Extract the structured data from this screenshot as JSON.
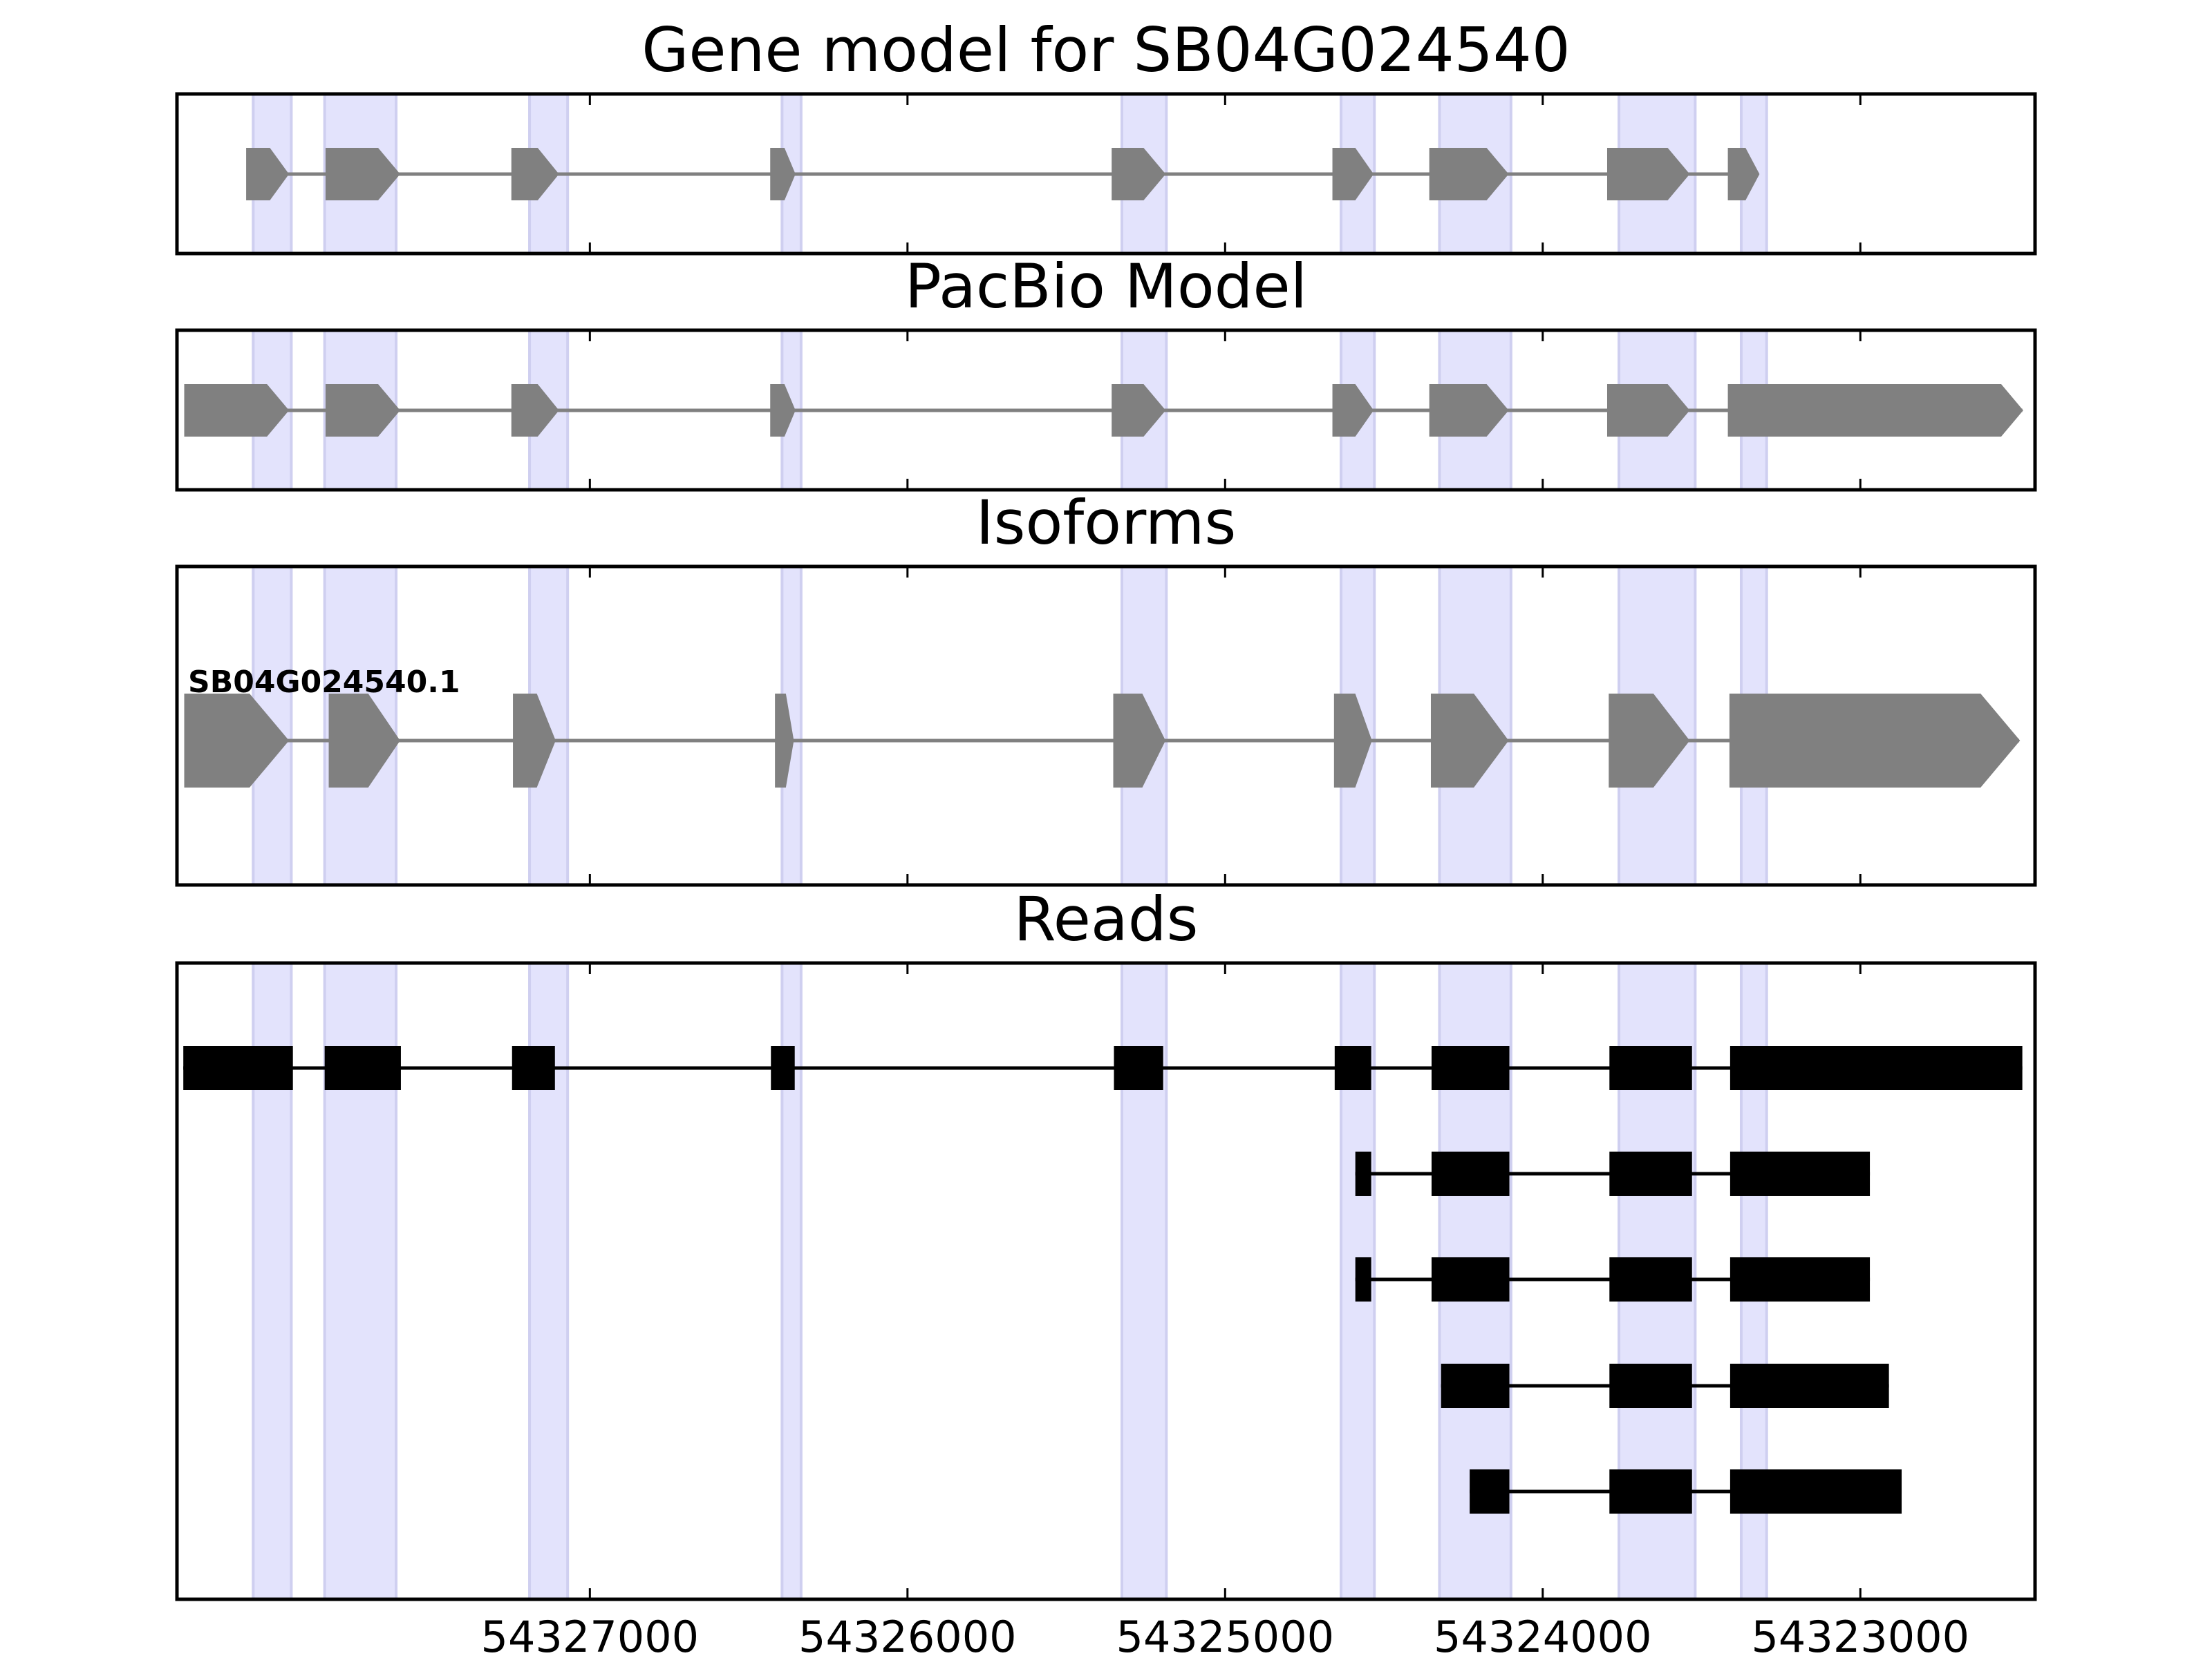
{
  "chart_data": {
    "type": "gene-structure",
    "x_axis": {
      "reversed": true,
      "range": [
        54328300,
        54322450
      ],
      "ticks": [
        54327000,
        54326000,
        54325000,
        54324000,
        54323000
      ],
      "tick_labels": [
        "54327000",
        "54326000",
        "54325000",
        "54324000",
        "54323000"
      ]
    },
    "colors": {
      "highlight": "#e3e3fc",
      "highlight_edge": "#cfcff0",
      "feature": "#808080",
      "read": "#000000",
      "frame": "#000000"
    },
    "highlight_regions": [
      [
        54328060,
        54327940
      ],
      [
        54327835,
        54327610
      ],
      [
        54327190,
        54327070
      ],
      [
        54326395,
        54326335
      ],
      [
        54325325,
        54325185
      ],
      [
        54324635,
        54324530
      ],
      [
        54324325,
        54324100
      ],
      [
        54323760,
        54323520
      ],
      [
        54323375,
        54323295
      ]
    ],
    "panels": [
      {
        "id": "gene-model",
        "title": "Gene model for SB04G024540",
        "tracks": [
          {
            "label": "",
            "style": "arrow",
            "exons": [
              [
                54328080,
                54327950
              ],
              [
                54327830,
                54327600
              ],
              [
                54327245,
                54327100
              ],
              [
                54326430,
                54326355
              ],
              [
                54325355,
                54325190
              ],
              [
                54324660,
                54324535
              ],
              [
                54324355,
                54324110
              ],
              [
                54323795,
                54323540
              ],
              [
                54323415,
                54323320
              ]
            ]
          }
        ]
      },
      {
        "id": "pacbio-model",
        "title": "PacBio Model",
        "tracks": [
          {
            "label": "",
            "style": "arrow",
            "exons": [
              [
                54328275,
                54327950
              ],
              [
                54327830,
                54327600
              ],
              [
                54327245,
                54327100
              ],
              [
                54326430,
                54326355
              ],
              [
                54325355,
                54325190
              ],
              [
                54324660,
                54324535
              ],
              [
                54324355,
                54324110
              ],
              [
                54323795,
                54323540
              ],
              [
                54323415,
                54322490
              ]
            ]
          }
        ]
      },
      {
        "id": "isoforms",
        "title": "Isoforms",
        "tracks": [
          {
            "label": "SB04G024540.1",
            "style": "arrow",
            "exons": [
              [
                54328275,
                54327950
              ],
              [
                54327820,
                54327600
              ],
              [
                54327240,
                54327110
              ],
              [
                54326415,
                54326360
              ],
              [
                54325350,
                54325190
              ],
              [
                54324655,
                54324540
              ],
              [
                54324350,
                54324110
              ],
              [
                54323790,
                54323540
              ],
              [
                54323410,
                54322500
              ]
            ]
          }
        ]
      },
      {
        "id": "reads",
        "title": "Reads",
        "tracks": [
          {
            "label": "",
            "style": "box",
            "exons": [
              [
                54328280,
                54327935
              ],
              [
                54327835,
                54327595
              ],
              [
                54327245,
                54327110
              ],
              [
                54326430,
                54326355
              ],
              [
                54325350,
                54325195
              ],
              [
                54324655,
                54324540
              ],
              [
                54324350,
                54324105
              ],
              [
                54323790,
                54323530
              ],
              [
                54323410,
                54322490
              ]
            ]
          },
          {
            "label": "",
            "style": "box",
            "exons": [
              [
                54324590,
                54324540
              ],
              [
                54324350,
                54324105
              ],
              [
                54323790,
                54323530
              ],
              [
                54323410,
                54322970
              ]
            ]
          },
          {
            "label": "",
            "style": "box",
            "exons": [
              [
                54324590,
                54324540
              ],
              [
                54324350,
                54324105
              ],
              [
                54323790,
                54323530
              ],
              [
                54323410,
                54322970
              ]
            ]
          },
          {
            "label": "",
            "style": "box",
            "exons": [
              [
                54324320,
                54324105
              ],
              [
                54323790,
                54323530
              ],
              [
                54323410,
                54322910
              ]
            ]
          },
          {
            "label": "",
            "style": "box",
            "exons": [
              [
                54324230,
                54324105
              ],
              [
                54323790,
                54323530
              ],
              [
                54323410,
                54322870
              ]
            ]
          }
        ]
      }
    ]
  }
}
